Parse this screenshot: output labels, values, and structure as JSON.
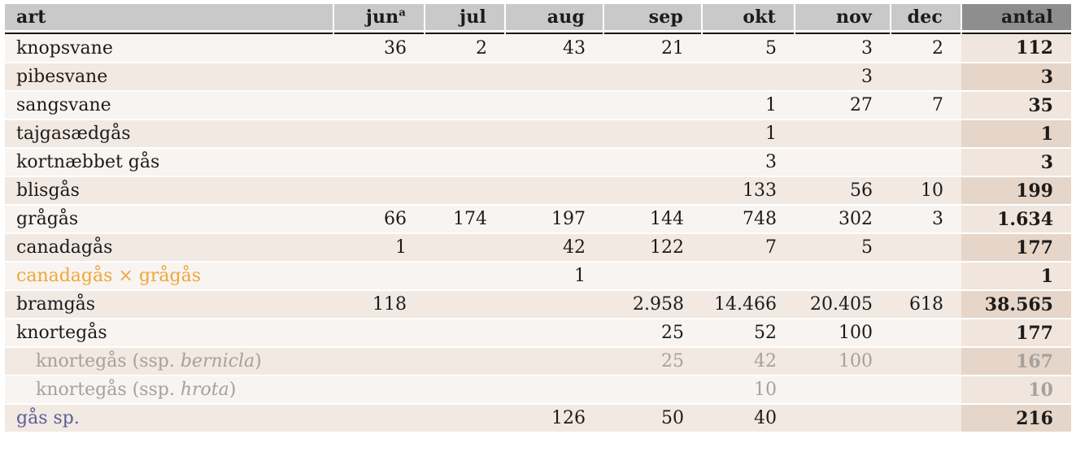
{
  "colors": {
    "header_bg": "#c9c9c9",
    "antal_header_bg": "#8e8e8e",
    "row_light": "#f8f4f1",
    "row_dark": "#f1e9e2",
    "antal_light": "#f0e6dd",
    "antal_dark": "#e5d6c9",
    "text": "#1d1b1a",
    "hybrid_text": "#f0a637",
    "subspecies_text": "#a6a19c",
    "species_group_text": "#5d5d99"
  },
  "table": {
    "columns": [
      {
        "key": "art",
        "label": "art"
      },
      {
        "key": "jun",
        "label": "jun",
        "superscript": "a"
      },
      {
        "key": "jul",
        "label": "jul"
      },
      {
        "key": "aug",
        "label": "aug"
      },
      {
        "key": "sep",
        "label": "sep"
      },
      {
        "key": "okt",
        "label": "okt"
      },
      {
        "key": "nov",
        "label": "nov"
      },
      {
        "key": "dec",
        "label": "dec"
      },
      {
        "key": "antal",
        "label": "antal"
      }
    ],
    "rows": [
      {
        "name": "knopsvane",
        "type": "normal",
        "values": [
          "36",
          "2",
          "43",
          "21",
          "5",
          "3",
          "2"
        ],
        "antal": "112"
      },
      {
        "name": "pibesvane",
        "type": "normal",
        "values": [
          "",
          "",
          "",
          "",
          "",
          "3",
          ""
        ],
        "antal": "3"
      },
      {
        "name": "sangsvane",
        "type": "normal",
        "values": [
          "",
          "",
          "",
          "",
          "1",
          "27",
          "7"
        ],
        "antal": "35"
      },
      {
        "name": "tajgasædgås",
        "type": "normal",
        "values": [
          "",
          "",
          "",
          "",
          "1",
          "",
          ""
        ],
        "antal": "1"
      },
      {
        "name": "kortnæbbet gås",
        "type": "normal",
        "values": [
          "",
          "",
          "",
          "",
          "3",
          "",
          ""
        ],
        "antal": "3"
      },
      {
        "name": "blisgås",
        "type": "normal",
        "values": [
          "",
          "",
          "",
          "",
          "133",
          "56",
          "10"
        ],
        "antal": "199"
      },
      {
        "name": "grågås",
        "type": "normal",
        "values": [
          "66",
          "174",
          "197",
          "144",
          "748",
          "302",
          "3"
        ],
        "antal": "1.634"
      },
      {
        "name": "canadagås",
        "type": "normal",
        "values": [
          "1",
          "",
          "42",
          "122",
          "7",
          "5",
          ""
        ],
        "antal": "177"
      },
      {
        "name": "canadagås × grågås",
        "type": "hybrid",
        "values": [
          "",
          "",
          "1",
          "",
          "",
          "",
          ""
        ],
        "antal": "1"
      },
      {
        "name": "bramgås",
        "type": "normal",
        "values": [
          "118",
          "",
          "",
          "2.958",
          "14.466",
          "20.405",
          "618"
        ],
        "antal": "38.565"
      },
      {
        "name": "knortegås",
        "type": "normal",
        "values": [
          "",
          "",
          "",
          "25",
          "52",
          "100",
          ""
        ],
        "antal": "177"
      },
      {
        "name": "knortegås (ssp. bernicla)",
        "type": "subspecies",
        "name_parts": {
          "prefix": "knortegås (ssp. ",
          "italic": "bernicla",
          "suffix": ")"
        },
        "values": [
          "",
          "",
          "",
          "25",
          "42",
          "100",
          ""
        ],
        "antal": "167"
      },
      {
        "name": "knortegås (ssp. hrota)",
        "type": "subspecies",
        "name_parts": {
          "prefix": "knortegås (ssp. ",
          "italic": "hrota",
          "suffix": ")"
        },
        "values": [
          "",
          "",
          "",
          "",
          "10",
          "",
          ""
        ],
        "antal": "10"
      },
      {
        "name": "gås sp.",
        "type": "species-group",
        "values": [
          "",
          "",
          "126",
          "50",
          "40",
          "",
          ""
        ],
        "antal": "216"
      }
    ]
  }
}
